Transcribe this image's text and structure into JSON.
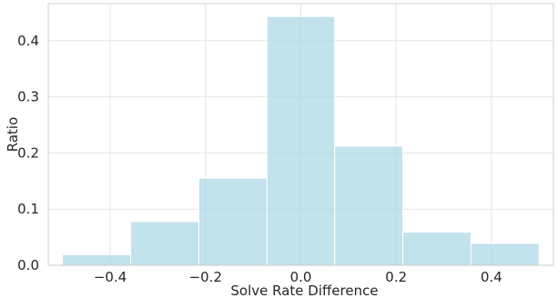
{
  "chart_data": {
    "type": "bar",
    "title": "",
    "xlabel": "Solve Rate Difference",
    "ylabel": "Ratio",
    "bins": [
      {
        "x0": -0.5,
        "x1": -0.357,
        "value": 0.019
      },
      {
        "x0": -0.357,
        "x1": -0.214,
        "value": 0.078
      },
      {
        "x0": -0.214,
        "x1": -0.071,
        "value": 0.155
      },
      {
        "x0": -0.071,
        "x1": 0.071,
        "value": 0.443
      },
      {
        "x0": 0.071,
        "x1": 0.214,
        "value": 0.212
      },
      {
        "x0": 0.214,
        "x1": 0.357,
        "value": 0.059
      },
      {
        "x0": 0.357,
        "x1": 0.5,
        "value": 0.039
      }
    ],
    "xlim": [
      -0.53,
      0.53
    ],
    "ylim": [
      0,
      0.466
    ],
    "xticks": [
      -0.4,
      -0.2,
      0.0,
      0.2,
      0.4
    ],
    "xtick_labels": [
      "−0.4",
      "−0.2",
      "0.0",
      "0.2",
      "0.4"
    ],
    "yticks": [
      0.0,
      0.1,
      0.2,
      0.3,
      0.4
    ],
    "ytick_labels": [
      "0.0",
      "0.1",
      "0.2",
      "0.3",
      "0.4"
    ],
    "grid": true,
    "colors": {
      "bar_fill": "#add8e6",
      "bar_edge": "#ffffff",
      "grid": "#e5e5e5",
      "spine": "#cccccc"
    }
  }
}
